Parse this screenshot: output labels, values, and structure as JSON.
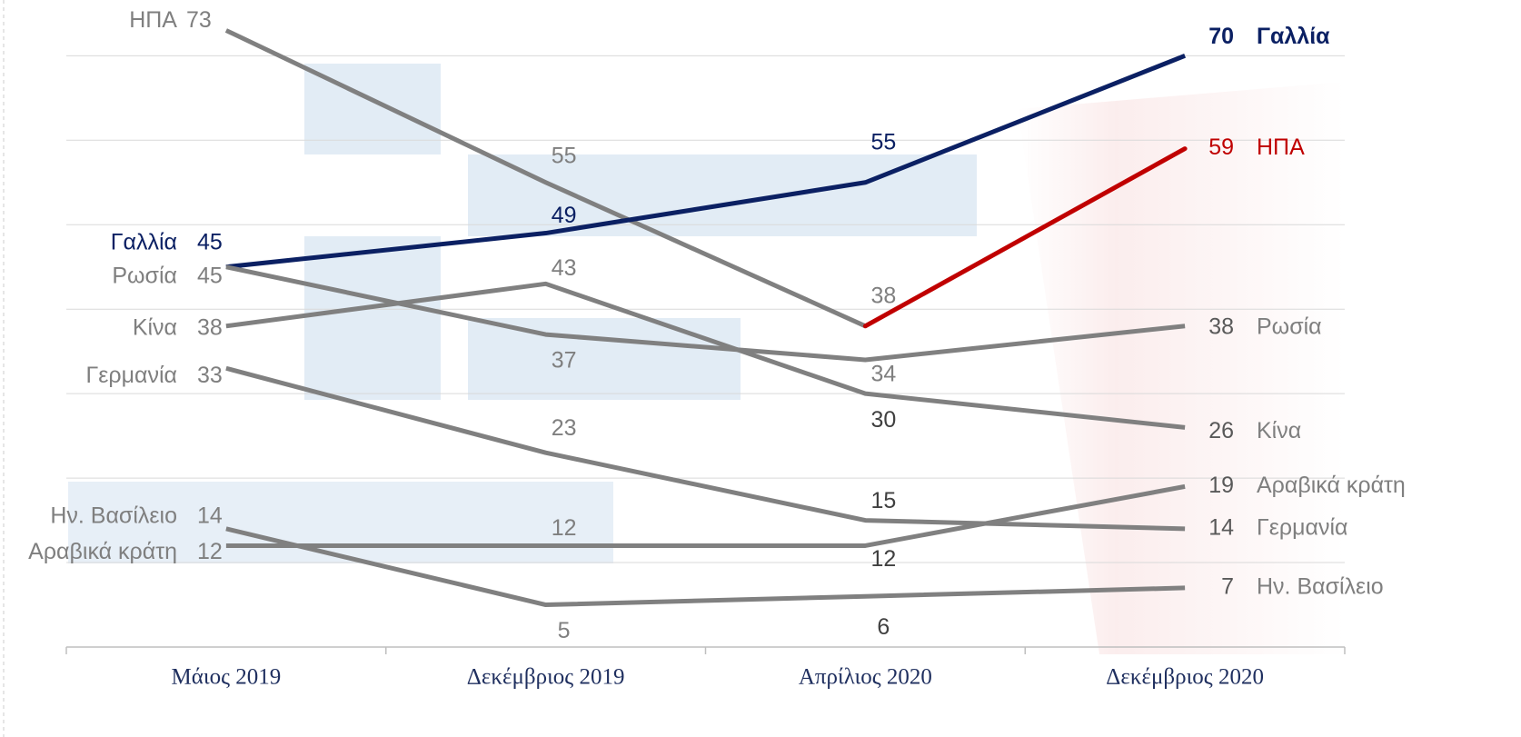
{
  "chart_data": {
    "type": "line",
    "categories": [
      "Μάιος 2019",
      "Δεκέμβριος 2019",
      "Απρίλιος 2020",
      "Δεκέμβριος 2020"
    ],
    "series": [
      {
        "name": "ΗΠΑ",
        "color": "#808080",
        "end_color": "#c00000",
        "values": [
          73,
          55,
          38,
          59
        ]
      },
      {
        "name": "Γαλλία",
        "color": "#0b2063",
        "bold_end": true,
        "values": [
          45,
          49,
          55,
          70
        ]
      },
      {
        "name": "Ρωσία",
        "color": "#808080",
        "values": [
          45,
          37,
          34,
          38
        ]
      },
      {
        "name": "Κίνα",
        "color": "#808080",
        "values": [
          38,
          43,
          30,
          26
        ]
      },
      {
        "name": "Γερμανία",
        "color": "#808080",
        "values": [
          33,
          23,
          15,
          14
        ]
      },
      {
        "name": "Ην. Βασίλειο",
        "color": "#808080",
        "values": [
          14,
          5,
          6,
          7
        ]
      },
      {
        "name": "Αραβικά κράτη",
        "color": "#808080",
        "values": [
          12,
          12,
          12,
          19
        ]
      }
    ],
    "ylim": [
      0,
      76.6
    ],
    "yticks": [
      10,
      20,
      30,
      40,
      50,
      60,
      70
    ],
    "grid": true
  }
}
